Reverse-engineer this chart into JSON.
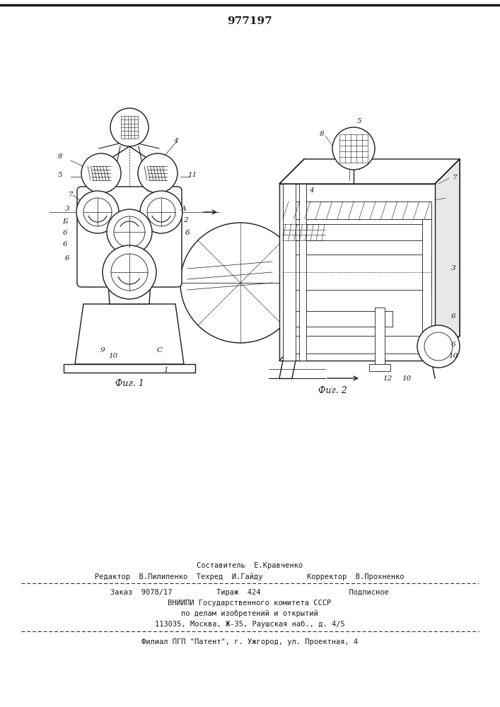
{
  "patent_number": "977197",
  "fig1_caption": "Фиг. 1",
  "fig2_caption": "Фиг. 2",
  "footer_line1": "Составитель  Е.Кравченко",
  "footer_line2": "Редактор  В.Пилипенко  Техред  И.Гайду          Корректор  В.Прохненко",
  "footer_line3": "Заказ  9078/17          Тираж  424                    Подписное",
  "footer_line4": "ВНИИПИ Государственного комитета СССР",
  "footer_line5": "по делам изобретений и открытий",
  "footer_line6": "113035, Москва, Ж-35, Раушская наб., д. 4/5",
  "footer_line7": "Филиал ПГП \"Патент\", г. Ужгород, ул. Проектная, 4",
  "bg_color": "#ffffff",
  "line_color": "#1a1a1a"
}
